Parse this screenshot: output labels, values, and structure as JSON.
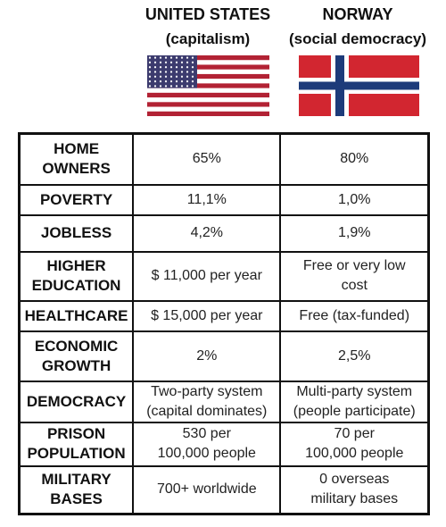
{
  "header": {
    "columns": [
      {
        "title": "UNITED STATES",
        "subtitle": "(capitalism)"
      },
      {
        "title": "NORWAY",
        "subtitle": "(social democracy)"
      }
    ]
  },
  "table": {
    "rows": [
      {
        "label": [
          "HOME",
          "OWNERS"
        ],
        "cells": [
          [
            "65%"
          ],
          [
            "80%"
          ]
        ]
      },
      {
        "label": [
          "POVERTY"
        ],
        "cells": [
          [
            "11,1%"
          ],
          [
            "1,0%"
          ]
        ]
      },
      {
        "label": [
          "JOBLESS"
        ],
        "cells": [
          [
            "4,2%"
          ],
          [
            "1,9%"
          ]
        ]
      },
      {
        "label": [
          "HIGHER",
          "EDUCATION"
        ],
        "cells": [
          [
            "$ 11,000 per year"
          ],
          [
            "Free or very low",
            "cost"
          ]
        ]
      },
      {
        "label": [
          "HEALTHCARE"
        ],
        "cells": [
          [
            "$ 15,000 per year"
          ],
          [
            "Free (tax-funded)"
          ]
        ]
      },
      {
        "label": [
          "ECONOMIC",
          "GROWTH"
        ],
        "cells": [
          [
            "2%"
          ],
          [
            "2,5%"
          ]
        ]
      },
      {
        "label": [
          "DEMOCRACY"
        ],
        "cells": [
          [
            "Two-party system",
            "(capital dominates)"
          ],
          [
            "Multi-party system",
            "(people participate)"
          ]
        ]
      },
      {
        "label": [
          "PRISON",
          "POPULATION"
        ],
        "cells": [
          [
            "530 per",
            "100,000 people"
          ],
          [
            "70 per",
            "100,000 people"
          ]
        ]
      },
      {
        "label": [
          "MILITARY",
          "BASES"
        ],
        "cells": [
          [
            "700+ worldwide"
          ],
          [
            "0 overseas",
            "military bases"
          ]
        ]
      }
    ]
  }
}
